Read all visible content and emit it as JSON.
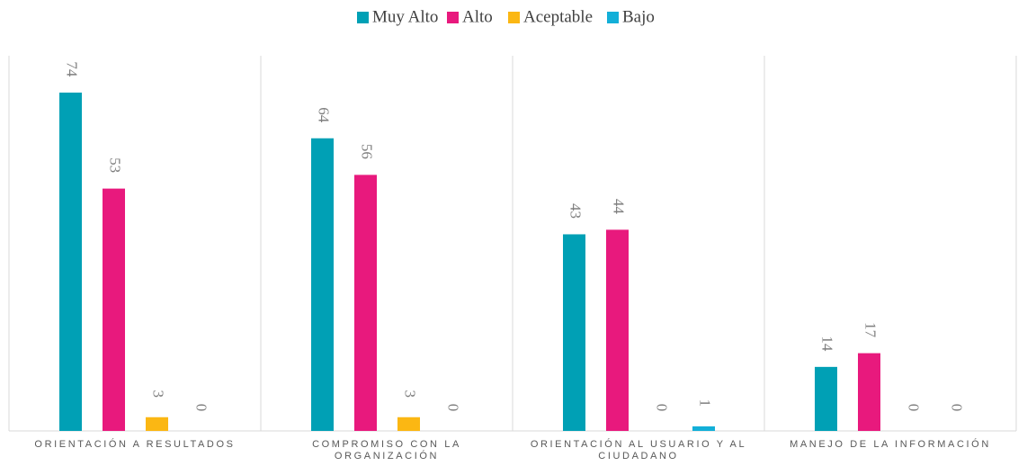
{
  "chart_data": {
    "type": "bar",
    "categories": [
      "ORIENTACIÓN A RESULTADOS",
      "COMPROMISO CON LA ORGANIZACIÓN",
      "ORIENTACIÓN AL USUARIO Y AL CIUDADANO",
      "MANEJO DE LA INFORMACIÓN"
    ],
    "series": [
      {
        "name": "Muy Alto",
        "color": "#00a0b5",
        "values": [
          74,
          64,
          43,
          14
        ]
      },
      {
        "name": "Alto",
        "color": "#e8197d",
        "values": [
          53,
          56,
          44,
          17
        ]
      },
      {
        "name": "Aceptable",
        "color": "#fbb713",
        "values": [
          3,
          3,
          0,
          0
        ]
      },
      {
        "name": "Bajo",
        "color": "#13afd8",
        "values": [
          0,
          0,
          1,
          0
        ]
      }
    ],
    "ylim": [
      0,
      85
    ],
    "legend": "top"
  }
}
